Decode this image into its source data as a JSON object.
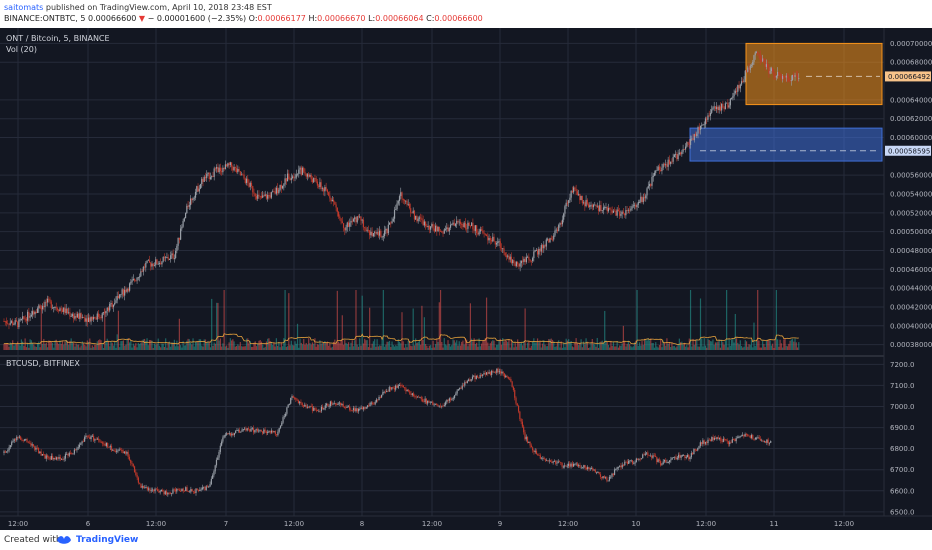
{
  "header": {
    "author": "saitomats",
    "published_text": "published on TradingView.com, April 10, 2018 23:48 EST",
    "symbol_line": "BINANCE:ONTBTC, 5",
    "last_price": "0.00066600",
    "change": "− 0.00001600 (−2.35%)",
    "o_label": "O:",
    "o_value": "0.00066177",
    "h_label": "H:",
    "h_value": "0.00066670",
    "l_label": "L:",
    "l_value": "0.00066064",
    "c_label": "C:",
    "c_value": "0.00066600"
  },
  "panes": {
    "top_title": "ONT / Bitcoin, 5, BINANCE",
    "volume_label": "Vol (20)",
    "bottom_title": "BTCUSD, BITFINEX"
  },
  "top_axis_ticks": [
    "0.00070000",
    "0.00068000",
    "0.00066492",
    "0.00064000",
    "0.00062000",
    "0.00060000",
    "0.00058595",
    "0.00056000",
    "0.00054000",
    "0.00052000",
    "0.00050000",
    "0.00048000",
    "0.00046000",
    "0.00044000",
    "0.00042000",
    "0.00040000",
    "0.00038000"
  ],
  "price_badges": {
    "orange": "0.00066492",
    "blue": "0.00058595"
  },
  "bottom_axis_ticks": [
    "7200.0",
    "7100.0",
    "7000.0",
    "6900.0",
    "6800.0",
    "6700.0",
    "6600.0",
    "6500.0"
  ],
  "time_ticks": [
    "12:00",
    "6",
    "12:00",
    "7",
    "12:00",
    "8",
    "12:00",
    "9",
    "12:00",
    "10",
    "12:00",
    "11",
    "12:00"
  ],
  "footer": {
    "created_with": "Created with",
    "brand": "TradingView"
  },
  "colors": {
    "background": "#131722",
    "grid": "#262b3a",
    "up": "#9aa0a8",
    "down": "#c0392b",
    "orange_zone": "#f7931a",
    "blue_zone": "#3f6fd8",
    "volume_ma": "#e6a23c"
  },
  "chart_data": [
    {
      "type": "candlestick",
      "title": "ONT / Bitcoin, 5, BINANCE",
      "ylim": [
        0.00037,
        0.00071
      ],
      "x": [
        "12:00",
        "6",
        "12:00",
        "7",
        "12:00",
        "8",
        "12:00",
        "9",
        "12:00",
        "10",
        "12:00",
        "11",
        "12:00"
      ],
      "close_path": [
        0.000405,
        0.000402,
        0.000415,
        0.000425,
        0.000418,
        0.00041,
        0.000408,
        0.000412,
        0.00043,
        0.000445,
        0.000465,
        0.000468,
        0.000475,
        0.00053,
        0.000555,
        0.000565,
        0.00057,
        0.000555,
        0.000535,
        0.00054,
        0.000558,
        0.000565,
        0.000552,
        0.000538,
        0.000505,
        0.000515,
        0.000495,
        0.0005,
        0.00054,
        0.000515,
        0.000505,
        0.0005,
        0.00051,
        0.000505,
        0.000495,
        0.000485,
        0.000465,
        0.00047,
        0.000485,
        0.0005,
        0.000545,
        0.00053,
        0.000525,
        0.00052,
        0.00052,
        0.000535,
        0.000565,
        0.000575,
        0.00059,
        0.00061,
        0.00063,
        0.000635,
        0.00066,
        0.00069,
        0.00067,
        0.000662,
        0.000666
      ],
      "zones": [
        {
          "color": "orange",
          "top": 0.0007,
          "bottom": 0.000635,
          "marker": 0.00066492
        },
        {
          "color": "blue",
          "top": 0.00061,
          "bottom": 0.000575,
          "marker": 0.00058595
        }
      ]
    },
    {
      "type": "candlestick",
      "title": "BTCUSD, BITFINEX",
      "ylim": [
        6490,
        7230
      ],
      "x": [
        "12:00",
        "6",
        "12:00",
        "7",
        "12:00",
        "8",
        "12:00",
        "9",
        "12:00",
        "10",
        "12:00",
        "11",
        "12:00"
      ],
      "close_path": [
        6780,
        6860,
        6820,
        6760,
        6750,
        6780,
        6860,
        6840,
        6790,
        6780,
        6620,
        6600,
        6590,
        6610,
        6600,
        6620,
        6860,
        6880,
        6890,
        6880,
        6870,
        7050,
        7000,
        6980,
        7020,
        7000,
        6980,
        7020,
        7080,
        7100,
        7050,
        7020,
        7000,
        7060,
        7130,
        7150,
        7170,
        7130,
        6860,
        6760,
        6740,
        6720,
        6720,
        6700,
        6650,
        6720,
        6740,
        6780,
        6730,
        6760,
        6760,
        6830,
        6850,
        6830,
        6860,
        6850,
        6830
      ],
      "ylabel": ""
    }
  ]
}
